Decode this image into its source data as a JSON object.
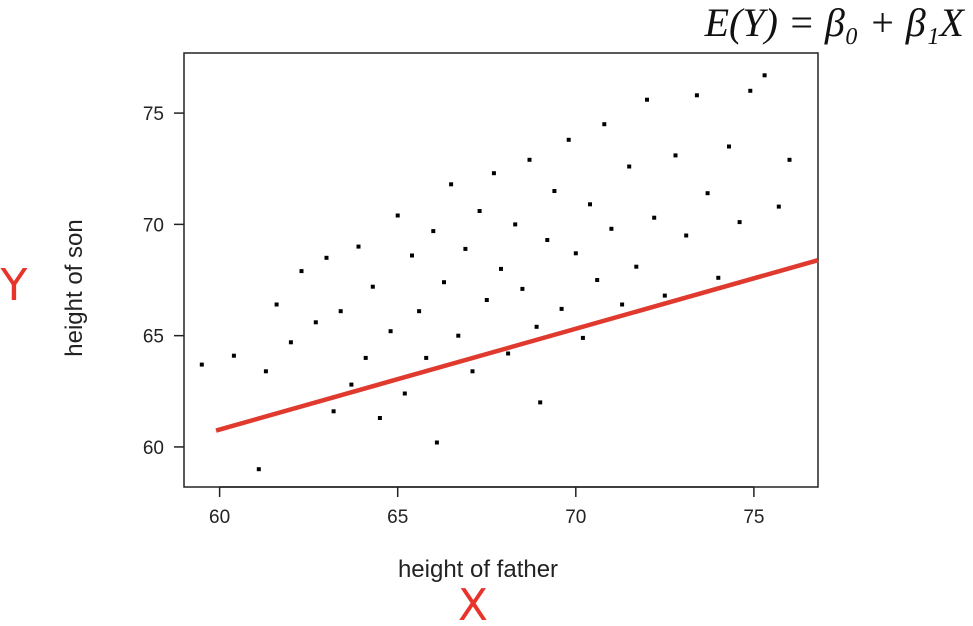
{
  "formula": "E(Y) = β₀ + β₁X",
  "annotations": {
    "y_var": "Y",
    "x_var": "X",
    "color": "#e8332a"
  },
  "chart_data": {
    "type": "scatter",
    "xlabel": "height of father",
    "ylabel": "height of son",
    "xlim": [
      59,
      76.8
    ],
    "ylim": [
      58.2,
      77.7
    ],
    "xticks": [
      60,
      65,
      70,
      75
    ],
    "yticks": [
      60,
      65,
      70,
      75
    ],
    "grid": false,
    "point_color": "#000000",
    "regression_line": {
      "intercept": 33.6,
      "slope": 0.453,
      "x_range": [
        59.9,
        76.8
      ],
      "color": "#e03a2e"
    },
    "points": [
      [
        59.5,
        63.7
      ],
      [
        60.4,
        64.1
      ],
      [
        61.1,
        59.0
      ],
      [
        61.3,
        63.4
      ],
      [
        61.6,
        66.4
      ],
      [
        62.0,
        64.7
      ],
      [
        62.3,
        67.9
      ],
      [
        62.7,
        65.6
      ],
      [
        63.0,
        68.5
      ],
      [
        63.2,
        61.6
      ],
      [
        63.4,
        66.1
      ],
      [
        63.7,
        62.8
      ],
      [
        63.9,
        69.0
      ],
      [
        64.1,
        64.0
      ],
      [
        64.3,
        67.2
      ],
      [
        64.5,
        61.3
      ],
      [
        64.8,
        65.2
      ],
      [
        65.0,
        70.4
      ],
      [
        65.2,
        62.4
      ],
      [
        65.4,
        68.6
      ],
      [
        65.6,
        66.1
      ],
      [
        65.8,
        64.0
      ],
      [
        66.0,
        69.7
      ],
      [
        66.1,
        60.2
      ],
      [
        66.3,
        67.4
      ],
      [
        66.5,
        71.8
      ],
      [
        66.7,
        65.0
      ],
      [
        66.9,
        68.9
      ],
      [
        67.1,
        63.4
      ],
      [
        67.3,
        70.6
      ],
      [
        67.5,
        66.6
      ],
      [
        67.7,
        72.3
      ],
      [
        67.9,
        68.0
      ],
      [
        68.1,
        64.2
      ],
      [
        68.3,
        70.0
      ],
      [
        68.5,
        67.1
      ],
      [
        68.7,
        72.9
      ],
      [
        68.9,
        65.4
      ],
      [
        69.0,
        62.0
      ],
      [
        69.2,
        69.3
      ],
      [
        69.4,
        71.5
      ],
      [
        69.6,
        66.2
      ],
      [
        69.8,
        73.8
      ],
      [
        70.0,
        68.7
      ],
      [
        70.2,
        64.9
      ],
      [
        70.4,
        70.9
      ],
      [
        70.6,
        67.5
      ],
      [
        70.8,
        74.5
      ],
      [
        71.0,
        69.8
      ],
      [
        71.3,
        66.4
      ],
      [
        71.5,
        72.6
      ],
      [
        71.7,
        68.1
      ],
      [
        72.0,
        75.6
      ],
      [
        72.2,
        70.3
      ],
      [
        72.5,
        66.8
      ],
      [
        72.8,
        73.1
      ],
      [
        73.1,
        69.5
      ],
      [
        73.4,
        75.8
      ],
      [
        73.7,
        71.4
      ],
      [
        74.0,
        67.6
      ],
      [
        74.3,
        73.5
      ],
      [
        74.6,
        70.1
      ],
      [
        74.9,
        76.0
      ],
      [
        75.3,
        76.7
      ],
      [
        75.7,
        70.8
      ],
      [
        76.0,
        72.9
      ]
    ]
  }
}
